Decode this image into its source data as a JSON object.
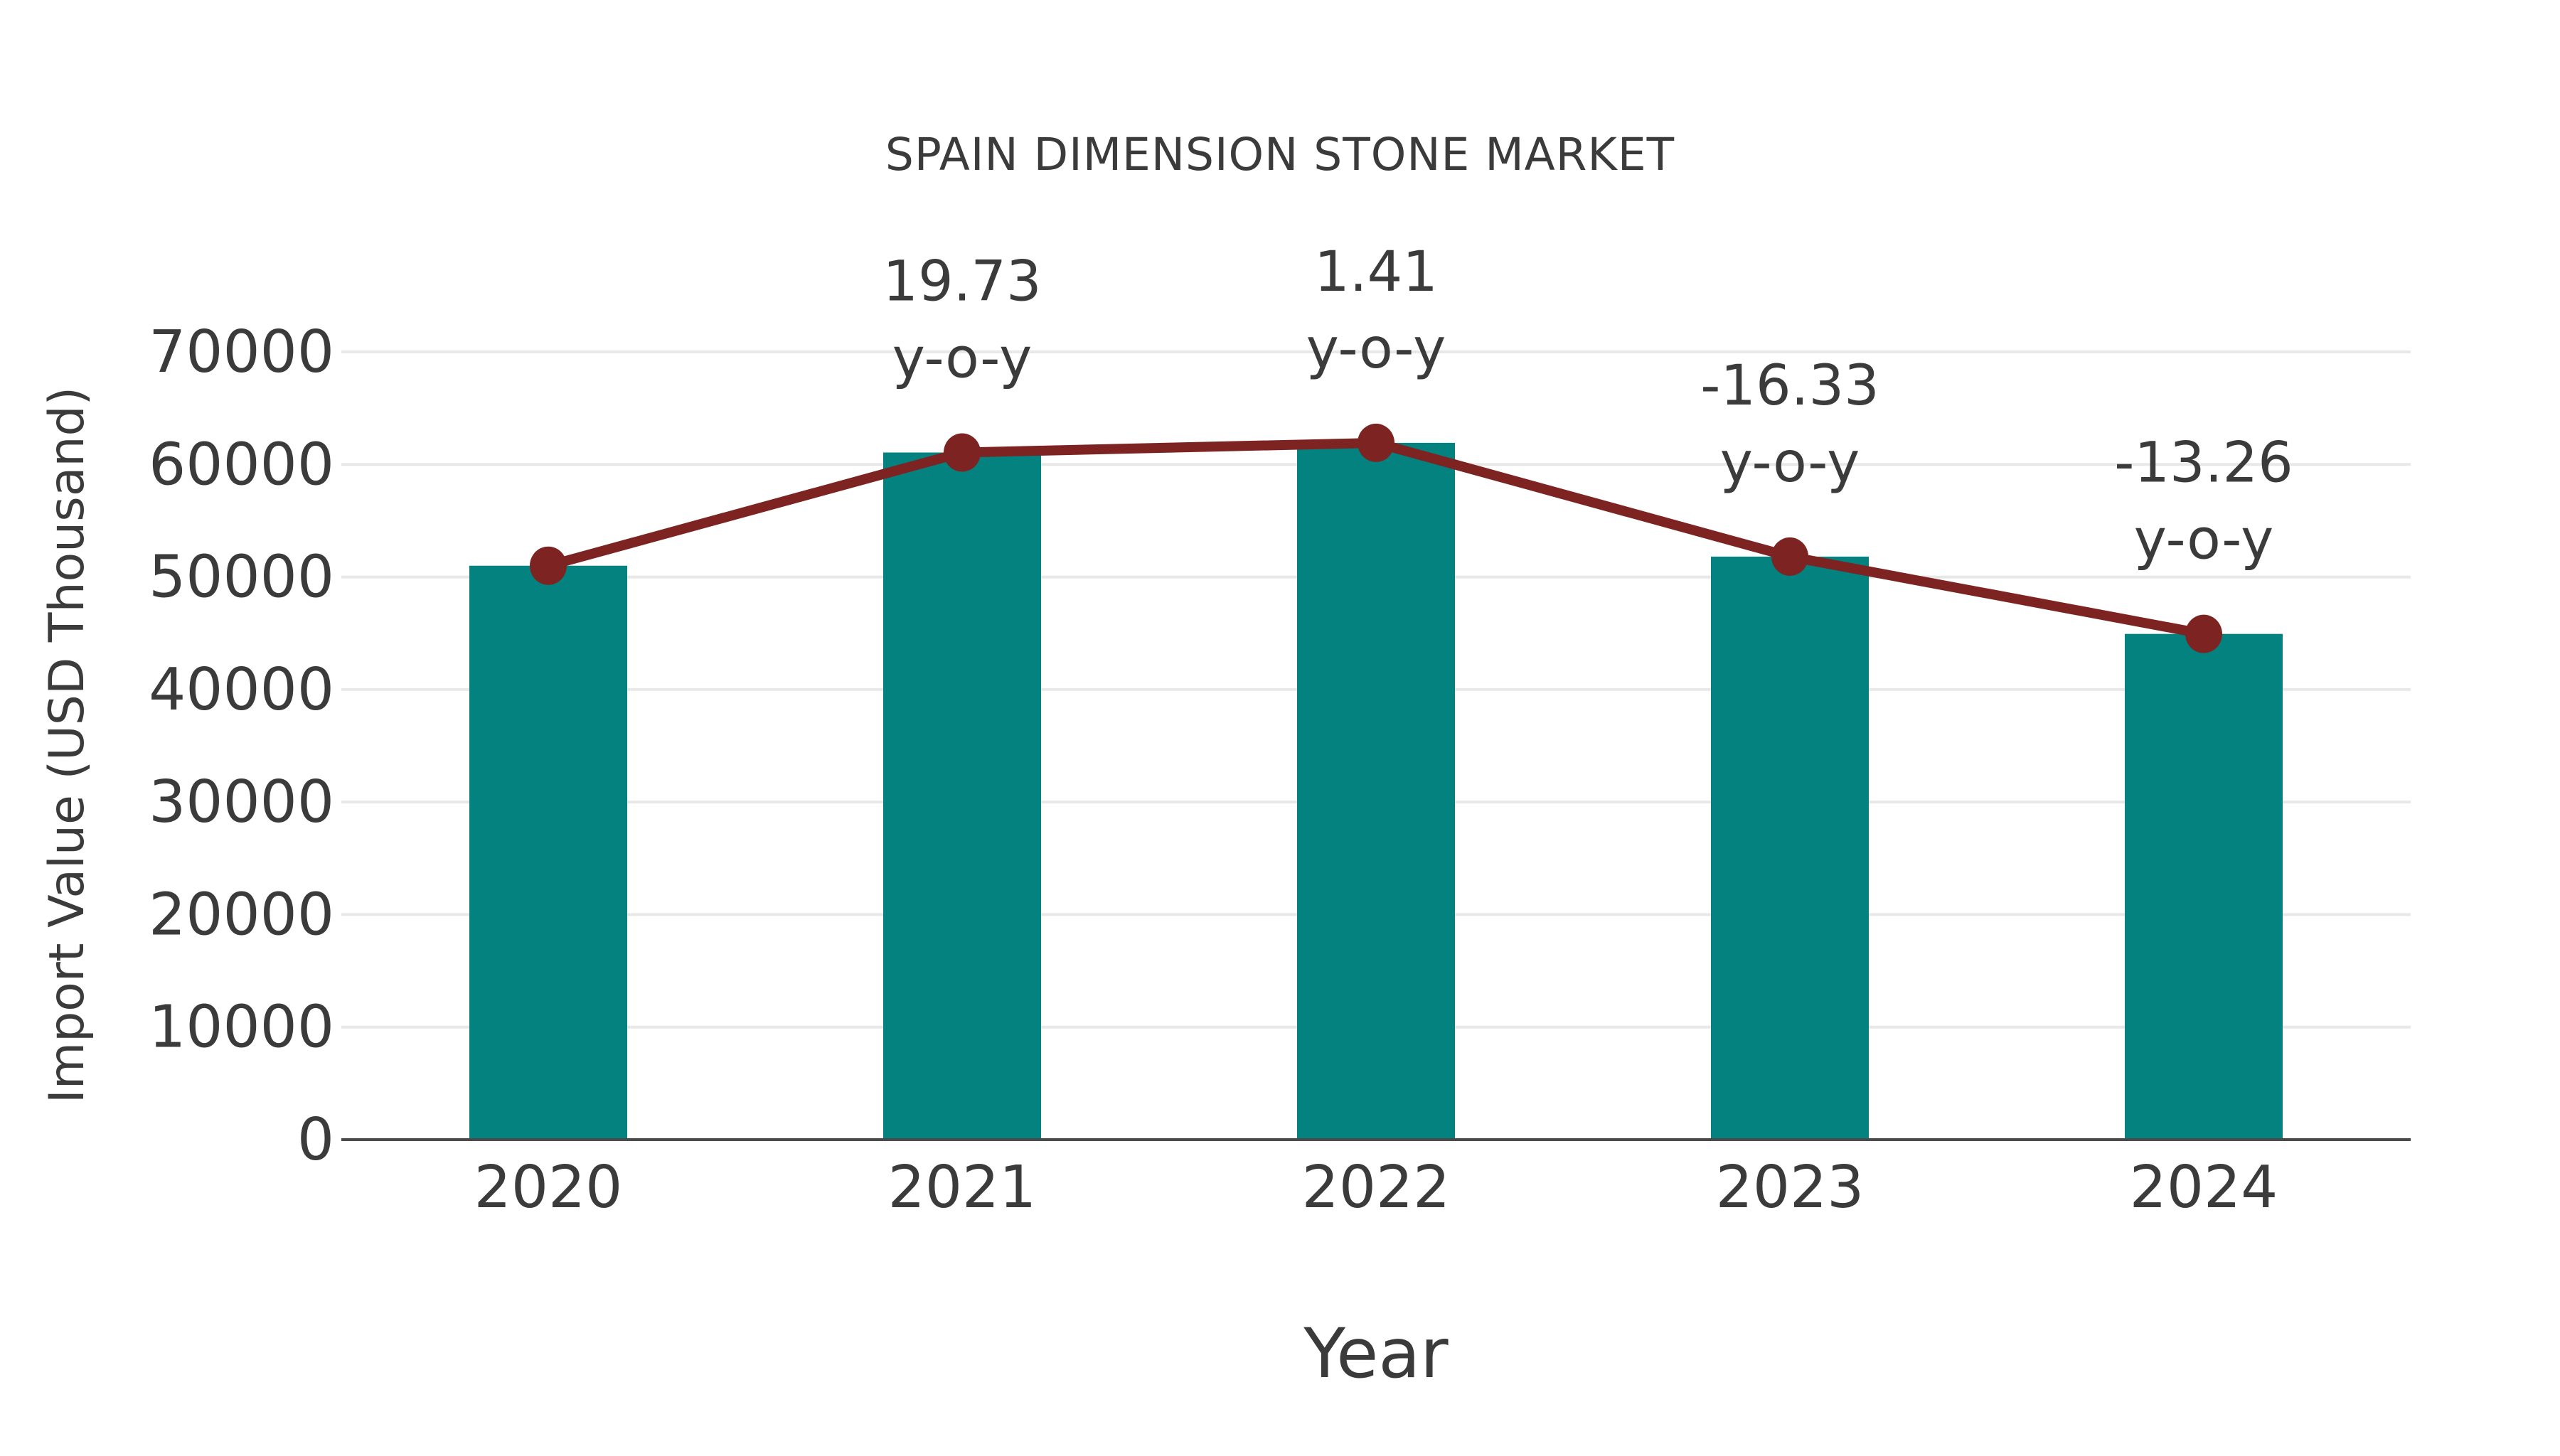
{
  "chart_data": {
    "type": "bar",
    "title": "SPAIN DIMENSION STONE MARKET",
    "xlabel": "Year",
    "ylabel": "Import Value (USD Thousand)",
    "categories": [
      "2020",
      "2021",
      "2022",
      "2023",
      "2024"
    ],
    "series": [
      {
        "name": "Import Value (USD Thousand)",
        "type": "bar",
        "color": "#048280",
        "values": [
          51000,
          61060,
          61920,
          51810,
          44940
        ]
      },
      {
        "name": "Import Value trend",
        "type": "line",
        "color": "#7d2422",
        "values": [
          51000,
          61060,
          61920,
          51810,
          44940
        ]
      }
    ],
    "annotations": [
      {
        "category": "2021",
        "value_label": "19.73",
        "unit_label": "y-o-y"
      },
      {
        "category": "2022",
        "value_label": "1.41",
        "unit_label": "y-o-y"
      },
      {
        "category": "2023",
        "value_label": "-16.33",
        "unit_label": "y-o-y"
      },
      {
        "category": "2024",
        "value_label": "-13.26",
        "unit_label": "y-o-y"
      }
    ],
    "ylim": [
      0,
      70000
    ],
    "yticks": [
      0,
      10000,
      20000,
      30000,
      40000,
      50000,
      60000,
      70000
    ],
    "grid": true,
    "legend_position": "none",
    "colors": {
      "bar": "#048280",
      "line": "#7d2422",
      "text": "#3b3b3b",
      "grid": "#e8e8e8",
      "axis": "#4a4a4a",
      "background": "#ffffff"
    }
  }
}
